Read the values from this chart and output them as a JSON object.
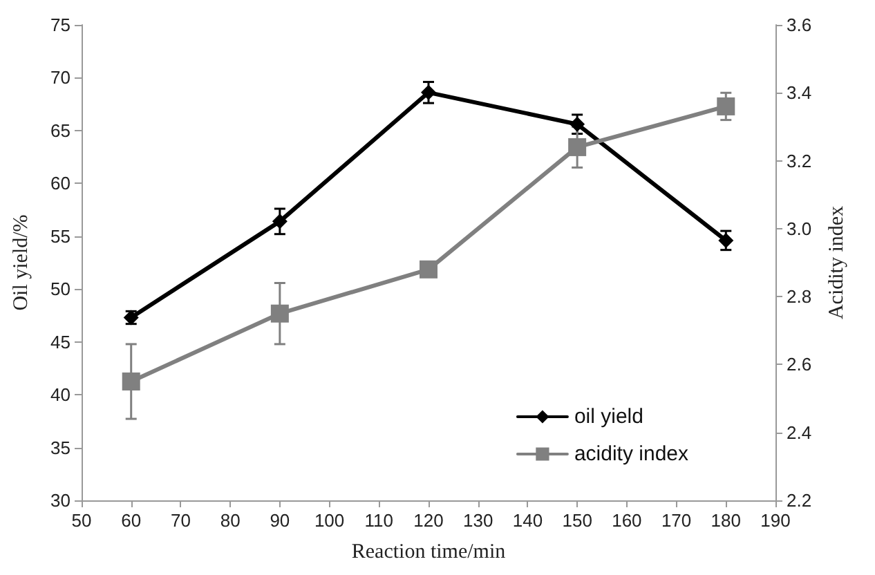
{
  "chart_data": {
    "type": "line",
    "xlabel": "Reaction time/min",
    "ylabel": "Oil yield/%",
    "y2label": "Acidity index",
    "x": [
      60,
      90,
      120,
      150,
      180
    ],
    "series": [
      {
        "name": "oil yield",
        "color": "#000000",
        "marker": "diamond",
        "values": [
          47.3,
          56.4,
          68.6,
          65.6,
          54.6
        ],
        "errors": [
          0.6,
          1.2,
          1.0,
          0.9,
          0.9
        ]
      },
      {
        "name": "acidity index",
        "color": "#808080",
        "marker": "square",
        "axis": "y2",
        "values": [
          2.55,
          2.75,
          2.88,
          3.24,
          3.36
        ],
        "errors": [
          0.11,
          0.09,
          0.02,
          0.06,
          0.04
        ]
      }
    ],
    "xlim": [
      50,
      190
    ],
    "xticks": [
      50,
      60,
      70,
      80,
      90,
      100,
      110,
      120,
      130,
      140,
      150,
      160,
      170,
      180,
      190
    ],
    "ylim": [
      30,
      75
    ],
    "yticks": [
      30,
      35,
      40,
      45,
      50,
      55,
      60,
      65,
      70,
      75
    ],
    "y2lim": [
      2.2,
      3.6
    ],
    "y2ticks": [
      2.2,
      2.4,
      2.6,
      2.8,
      {
        "value": 3,
        "label": "3.0"
      },
      3.2,
      3.4,
      3.6
    ],
    "grid": false,
    "legend": "bottom right"
  }
}
